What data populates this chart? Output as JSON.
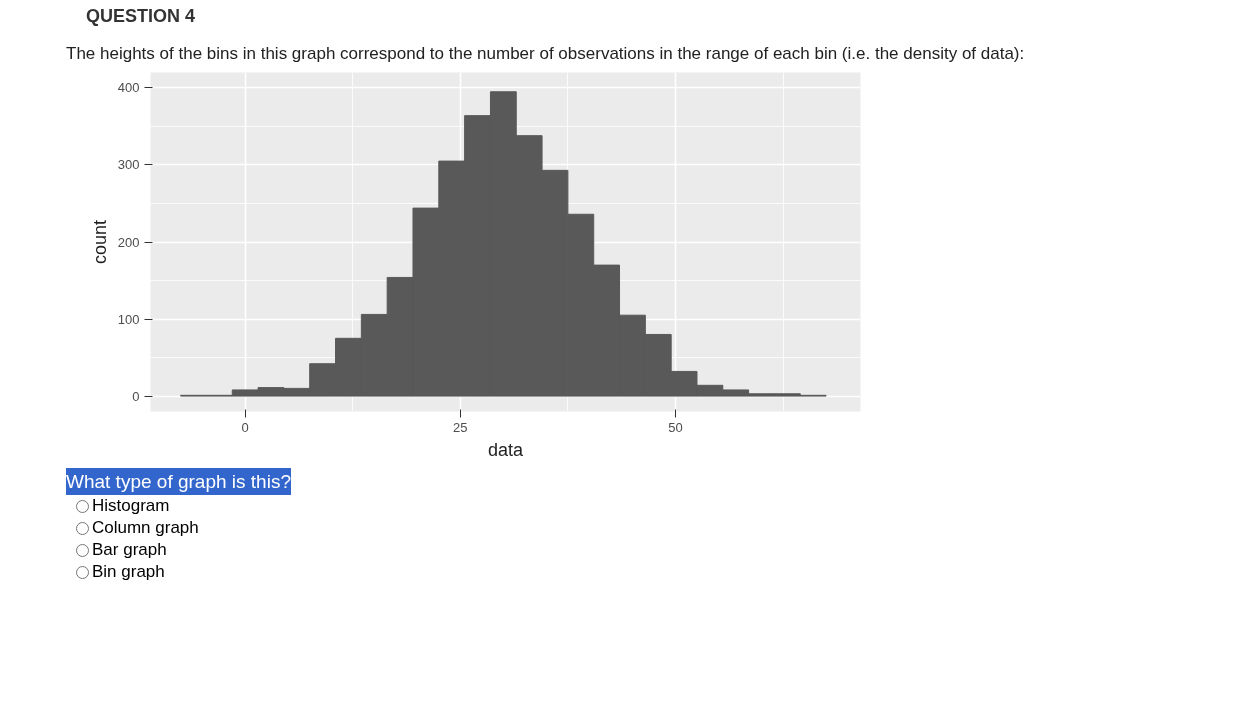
{
  "chart_data": {
    "type": "histogram",
    "title": "QUESTION 4",
    "subtitle": "The heights of the bins in this graph correspond to the number of observations in the range of each bin (i.e. the density of data):",
    "xlabel": "data",
    "ylabel": "count",
    "bins": [
      -7.5,
      -4.5,
      -1.5,
      1.5,
      4.5,
      7.5,
      10.5,
      13.5,
      16.5,
      19.5,
      22.5,
      25.5,
      28.5,
      31.5,
      34.5,
      37.5,
      40.5,
      43.5,
      46.5,
      49.5,
      52.5,
      55.5,
      58.5,
      61.5,
      64.5,
      67.5
    ],
    "values": [
      1,
      1,
      8,
      11,
      10,
      42,
      75,
      106,
      154,
      244,
      305,
      364,
      395,
      338,
      293,
      236,
      170,
      105,
      80,
      32,
      14,
      8,
      3,
      3,
      1
    ],
    "color": "#595959",
    "xlim": [
      -11,
      71.5
    ],
    "ylim": [
      -20,
      420
    ],
    "xticks": [
      0,
      25,
      50
    ],
    "yticks": [
      0,
      100,
      200,
      300,
      400
    ],
    "grid": true,
    "annotations": [
      "What type of graph is this?",
      "Histogram",
      "Column graph",
      "Bar graph",
      "Bin graph"
    ]
  }
}
